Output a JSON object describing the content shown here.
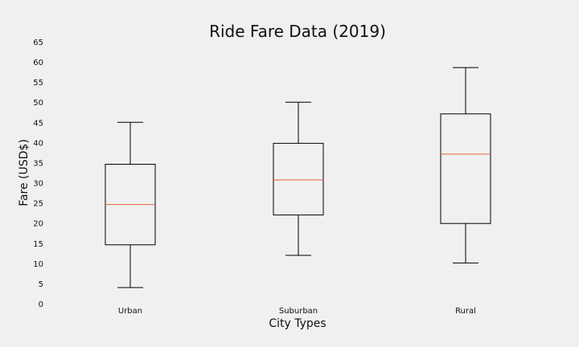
{
  "chart_data": {
    "type": "box",
    "title": "Ride Fare Data (2019)",
    "xlabel": "City Types",
    "ylabel": "Fare (USD$)",
    "categories": [
      "Urban",
      "Suburban",
      "Rural"
    ],
    "ylim": [
      0,
      65
    ],
    "yticks": [
      0,
      5,
      10,
      15,
      20,
      25,
      30,
      35,
      40,
      45,
      50,
      55,
      60,
      65
    ],
    "grid": false,
    "boxes": [
      {
        "category": "Urban",
        "whisker_low": 4.0,
        "q1": 14.6,
        "median": 24.6,
        "q3": 34.6,
        "whisker_high": 45.0
      },
      {
        "category": "Suburban",
        "whisker_low": 12.0,
        "q1": 22.0,
        "median": 30.7,
        "q3": 39.8,
        "whisker_high": 50.0
      },
      {
        "category": "Rural",
        "whisker_low": 10.1,
        "q1": 19.9,
        "median": 37.1,
        "q3": 47.1,
        "whisker_high": 58.6
      }
    ],
    "colors": {
      "box": "#000000",
      "median": "#e8603c",
      "background": "#f0f0f0"
    }
  }
}
